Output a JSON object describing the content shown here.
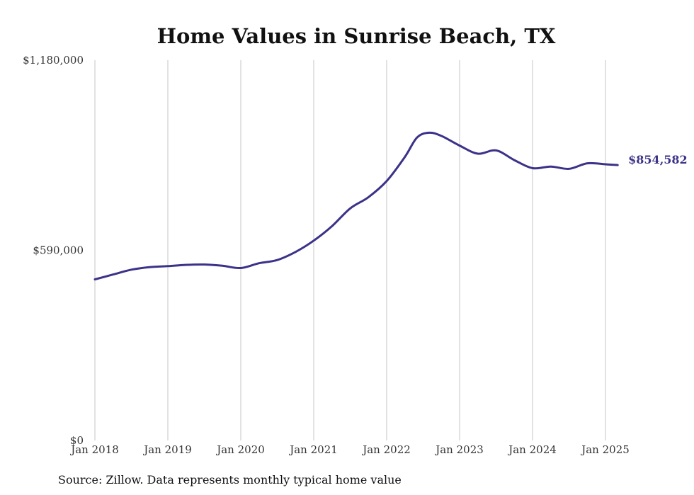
{
  "chart_data": {
    "type": "line",
    "title": "Home Values in Sunrise Beach, TX",
    "ylim": [
      0,
      1180000
    ],
    "y_ticks": [
      {
        "value": 0,
        "label": "$0"
      },
      {
        "value": 590000,
        "label": "$590,000"
      },
      {
        "value": 1180000,
        "label": "$1,180,000"
      }
    ],
    "x_ticks": [
      {
        "value": "2018-01",
        "label": "Jan 2018"
      },
      {
        "value": "2019-01",
        "label": "Jan 2019"
      },
      {
        "value": "2020-01",
        "label": "Jan 2020"
      },
      {
        "value": "2021-01",
        "label": "Jan 2021"
      },
      {
        "value": "2022-01",
        "label": "Jan 2022"
      },
      {
        "value": "2023-01",
        "label": "Jan 2023"
      },
      {
        "value": "2024-01",
        "label": "Jan 2024"
      },
      {
        "value": "2025-01",
        "label": "Jan 2025"
      }
    ],
    "grid": "vertical",
    "end_label": "$854,582",
    "series": [
      {
        "color": "#3b3289",
        "points": [
          {
            "x": "2018-01",
            "y": 500000
          },
          {
            "x": "2018-04",
            "y": 515000
          },
          {
            "x": "2018-07",
            "y": 530000
          },
          {
            "x": "2018-10",
            "y": 538000
          },
          {
            "x": "2019-01",
            "y": 541000
          },
          {
            "x": "2019-04",
            "y": 545000
          },
          {
            "x": "2019-07",
            "y": 546000
          },
          {
            "x": "2019-10",
            "y": 542000
          },
          {
            "x": "2020-01",
            "y": 535000
          },
          {
            "x": "2020-04",
            "y": 550000
          },
          {
            "x": "2020-07",
            "y": 560000
          },
          {
            "x": "2020-10",
            "y": 585000
          },
          {
            "x": "2021-01",
            "y": 620000
          },
          {
            "x": "2021-04",
            "y": 665000
          },
          {
            "x": "2021-07",
            "y": 720000
          },
          {
            "x": "2021-10",
            "y": 755000
          },
          {
            "x": "2022-01",
            "y": 805000
          },
          {
            "x": "2022-04",
            "y": 880000
          },
          {
            "x": "2022-06",
            "y": 940000
          },
          {
            "x": "2022-08",
            "y": 955000
          },
          {
            "x": "2022-10",
            "y": 945000
          },
          {
            "x": "2023-01",
            "y": 915000
          },
          {
            "x": "2023-04",
            "y": 890000
          },
          {
            "x": "2023-07",
            "y": 900000
          },
          {
            "x": "2023-10",
            "y": 870000
          },
          {
            "x": "2024-01",
            "y": 845000
          },
          {
            "x": "2024-04",
            "y": 850000
          },
          {
            "x": "2024-07",
            "y": 843000
          },
          {
            "x": "2024-10",
            "y": 860000
          },
          {
            "x": "2025-01",
            "y": 857000
          },
          {
            "x": "2025-03",
            "y": 854582
          }
        ]
      }
    ]
  },
  "source": "Source: Zillow. Data represents monthly typical home value"
}
